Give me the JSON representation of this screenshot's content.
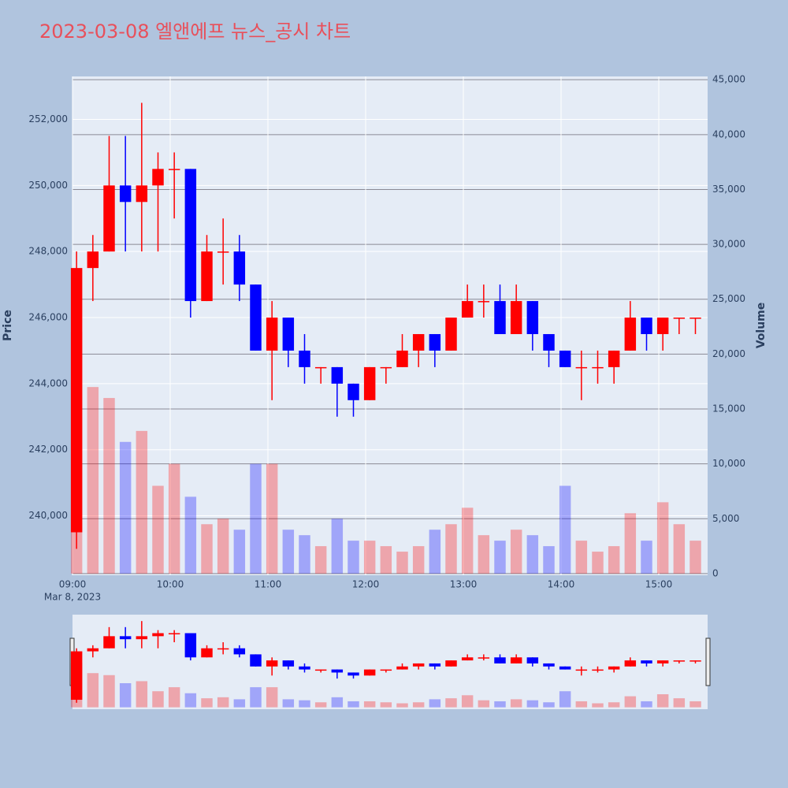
{
  "chart_data": {
    "type": "candlestick",
    "title": "2023-03-08 엘앤에프 뉴스_공시 차트",
    "y_label": "Price",
    "y2_label": "Volume",
    "x_date_label": "Mar 8, 2023",
    "x": [
      "09:00",
      "09:10",
      "09:20",
      "09:30",
      "09:40",
      "09:50",
      "10:00",
      "10:10",
      "10:20",
      "10:30",
      "10:40",
      "10:50",
      "11:00",
      "11:10",
      "11:20",
      "11:30",
      "11:40",
      "11:50",
      "12:00",
      "12:10",
      "12:20",
      "12:30",
      "12:40",
      "12:50",
      "13:00",
      "13:10",
      "13:20",
      "13:30",
      "13:40",
      "13:50",
      "14:00",
      "14:10",
      "14:20",
      "14:30",
      "14:40",
      "14:50",
      "15:00",
      "15:10",
      "15:20"
    ],
    "open": [
      239500,
      247500,
      248000,
      250000,
      249500,
      250000,
      250500,
      250500,
      246500,
      248000,
      248000,
      247000,
      245000,
      246000,
      245000,
      244500,
      244500,
      244000,
      243500,
      244500,
      244500,
      245000,
      245500,
      245000,
      246000,
      246500,
      246500,
      245500,
      246500,
      245500,
      245000,
      244500,
      244500,
      244500,
      245000,
      246000,
      245500,
      246000,
      246000
    ],
    "high": [
      248000,
      248500,
      251500,
      251500,
      252500,
      251000,
      251000,
      250500,
      248500,
      249000,
      248500,
      247000,
      246500,
      246000,
      245500,
      244500,
      244500,
      244000,
      244500,
      244500,
      245500,
      245500,
      245500,
      246000,
      247000,
      247000,
      247000,
      247000,
      246500,
      245500,
      245000,
      245000,
      245000,
      245000,
      246500,
      246000,
      246000,
      246000,
      246000
    ],
    "low": [
      239000,
      246500,
      248000,
      248000,
      248000,
      248000,
      249000,
      246000,
      246500,
      247000,
      246500,
      245000,
      243500,
      244500,
      244000,
      244000,
      243000,
      243000,
      243500,
      244000,
      244500,
      244500,
      244500,
      245000,
      246000,
      246000,
      245500,
      245500,
      245000,
      244500,
      244500,
      243500,
      244000,
      244000,
      245000,
      245000,
      245000,
      245500,
      245500
    ],
    "close": [
      247500,
      248000,
      250000,
      249500,
      250000,
      250500,
      250500,
      246500,
      248000,
      248000,
      247000,
      245000,
      246000,
      245000,
      244500,
      244500,
      244000,
      243500,
      244500,
      244500,
      245000,
      245500,
      245000,
      246000,
      246500,
      246500,
      245500,
      246500,
      245500,
      245000,
      244500,
      244500,
      244500,
      245000,
      246000,
      245500,
      246000,
      246000,
      246000
    ],
    "volume": [
      22000,
      17000,
      16000,
      12000,
      13000,
      8000,
      10000,
      7000,
      4500,
      5000,
      4000,
      10000,
      10000,
      4000,
      3500,
      2500,
      5000,
      3000,
      3000,
      2500,
      2000,
      2500,
      4000,
      4500,
      6000,
      3500,
      3000,
      4000,
      3500,
      2500,
      8000,
      3000,
      2000,
      2500,
      5500,
      3000,
      6500,
      4500,
      3000
    ],
    "increasing_color": "#ff0000",
    "decreasing_color": "#0000ff",
    "xlim": [
      "09:00",
      "15:30"
    ],
    "xticks": [
      "09:00",
      "10:00",
      "11:00",
      "12:00",
      "13:00",
      "14:00",
      "15:00"
    ],
    "ylim": [
      238200,
      253300
    ],
    "yticks": [
      {
        "value": 240000,
        "label": "240,000"
      },
      {
        "value": 242000,
        "label": "242,000"
      },
      {
        "value": 244000,
        "label": "244,000"
      },
      {
        "value": 246000,
        "label": "246,000"
      },
      {
        "value": 248000,
        "label": "248,000"
      },
      {
        "value": 250000,
        "label": "250,000"
      },
      {
        "value": 252000,
        "label": "252,000"
      }
    ],
    "y2lim": [
      -150,
      45300
    ],
    "y2ticks": [
      0,
      {
        "value": 5000,
        "label": "5,000"
      },
      {
        "value": 10000,
        "label": "10,000"
      },
      {
        "value": 15000,
        "label": "15,000"
      },
      {
        "value": 20000,
        "label": "20,000"
      },
      {
        "value": 25000,
        "label": "25,000"
      },
      {
        "value": 30000,
        "label": "30,000"
      },
      {
        "value": 35000,
        "label": "35,000"
      },
      {
        "value": 40000,
        "label": "40,000"
      },
      {
        "value": 45000,
        "label": "45,000"
      }
    ],
    "grid": true,
    "range_slider": true
  }
}
